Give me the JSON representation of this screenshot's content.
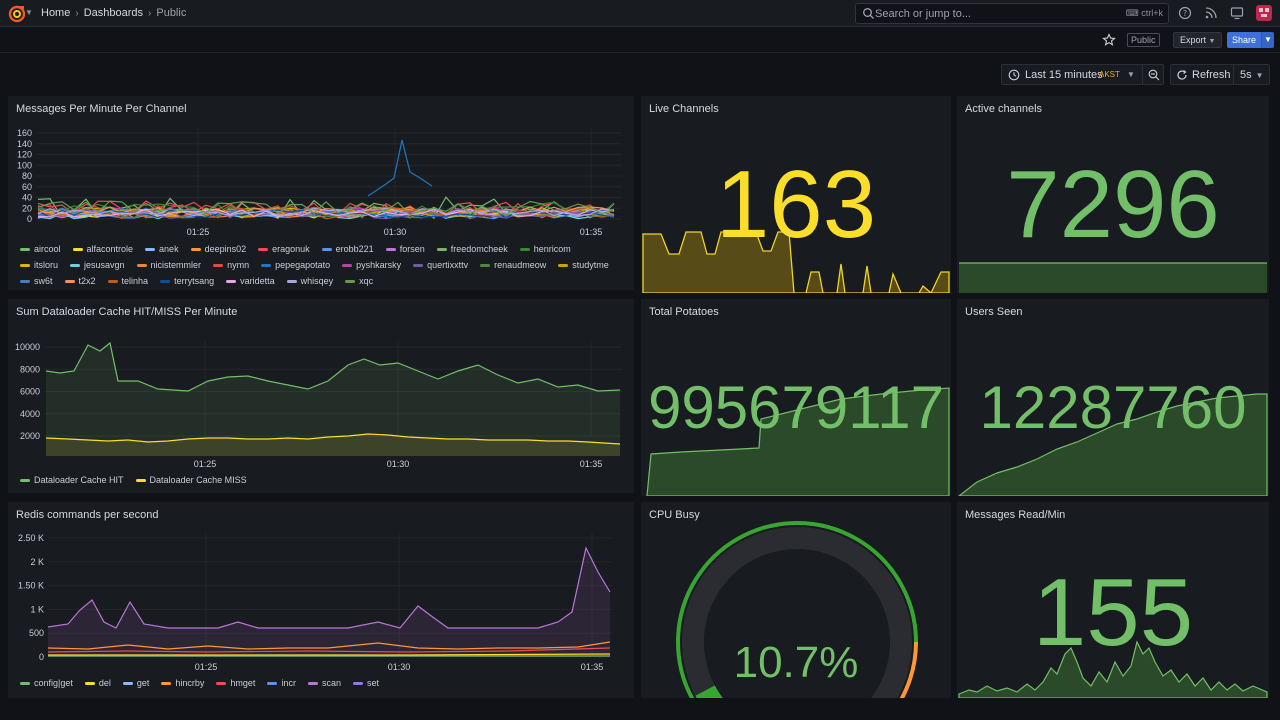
{
  "topbar": {
    "breadcrumbs": [
      "Home",
      "Dashboards",
      "Public"
    ],
    "search_placeholder": "Search or jump to...",
    "search_shortcut": "ctrl+k"
  },
  "toolbar": {
    "public_badge": "Public",
    "export_label": "Export",
    "share_label": "Share"
  },
  "timepicker": {
    "range": "Last 15 minutes",
    "timezone": "AKST",
    "refresh_label": "Refresh",
    "refresh_interval": "5s"
  },
  "colors": {
    "green": "#73bf69",
    "yellow": "#fade2a",
    "orange": "#ff9830",
    "red": "#f2495c",
    "blue": "#5794f2",
    "purple": "#b877d9"
  },
  "panels": {
    "messages_per_minute": {
      "title": "Messages Per Minute Per Channel",
      "y_ticks": [
        "160",
        "140",
        "120",
        "100",
        "80",
        "60",
        "40",
        "20",
        "0"
      ],
      "x_ticks": [
        "01:25",
        "01:30",
        "01:35"
      ],
      "legend": [
        {
          "name": "aircool",
          "color": "#73bf69"
        },
        {
          "name": "alfacontrole",
          "color": "#fade2a"
        },
        {
          "name": "anek",
          "color": "#8ab8ff"
        },
        {
          "name": "deepins02",
          "color": "#ff9830"
        },
        {
          "name": "eragonuk",
          "color": "#f2495c"
        },
        {
          "name": "erobb221",
          "color": "#5794f2"
        },
        {
          "name": "forsen",
          "color": "#b877d9"
        },
        {
          "name": "freedomcheek",
          "color": "#7eb26d"
        },
        {
          "name": "henricom",
          "color": "#37872d"
        },
        {
          "name": "itsloru",
          "color": "#e0b400"
        },
        {
          "name": "jesusavgn",
          "color": "#6ed0e0"
        },
        {
          "name": "nicistemmler",
          "color": "#ef843c"
        },
        {
          "name": "nymn",
          "color": "#e24d42"
        },
        {
          "name": "pepegapotato",
          "color": "#1f78c1"
        },
        {
          "name": "pyshkarsky",
          "color": "#ba43a9"
        },
        {
          "name": "quertixxttv",
          "color": "#705da0"
        },
        {
          "name": "renaudmeow",
          "color": "#508642"
        },
        {
          "name": "studytme",
          "color": "#cca300"
        },
        {
          "name": "sw6t",
          "color": "#447ebc"
        },
        {
          "name": "t2x2",
          "color": "#f9934e"
        },
        {
          "name": "telinha",
          "color": "#c15c17"
        },
        {
          "name": "terrytsang",
          "color": "#0a50a1"
        },
        {
          "name": "varidetta",
          "color": "#e5a8e2"
        },
        {
          "name": "whisqey",
          "color": "#aea2e0"
        },
        {
          "name": "xqc",
          "color": "#629e51"
        }
      ]
    },
    "live_channels": {
      "title": "Live Channels",
      "value": "163"
    },
    "active_channels": {
      "title": "Active channels",
      "value": "7296"
    },
    "dataloader": {
      "title": "Sum Dataloader Cache HIT/MISS Per Minute",
      "y_ticks": [
        "10000",
        "8000",
        "6000",
        "4000",
        "2000"
      ],
      "x_ticks": [
        "01:25",
        "01:30",
        "01:35"
      ],
      "legend": [
        {
          "name": "Dataloader Cache HIT",
          "color": "#73bf69"
        },
        {
          "name": "Dataloader Cache MISS",
          "color": "#fade2a"
        }
      ]
    },
    "total_potatoes": {
      "title": "Total Potatoes",
      "value": "995679117"
    },
    "users_seen": {
      "title": "Users Seen",
      "value": "12287760"
    },
    "redis": {
      "title": "Redis commands per second",
      "y_ticks": [
        "2.50 K",
        "2 K",
        "1.50 K",
        "1 K",
        "500",
        "0"
      ],
      "x_ticks": [
        "01:25",
        "01:30",
        "01:35"
      ],
      "legend": [
        {
          "name": "config|get",
          "color": "#73bf69"
        },
        {
          "name": "del",
          "color": "#fade2a"
        },
        {
          "name": "get",
          "color": "#8ab8ff"
        },
        {
          "name": "hincrby",
          "color": "#ff9830"
        },
        {
          "name": "hmget",
          "color": "#f2495c"
        },
        {
          "name": "incr",
          "color": "#5794f2"
        },
        {
          "name": "scan",
          "color": "#b877d9"
        },
        {
          "name": "set",
          "color": "#8f7ae0"
        }
      ]
    },
    "cpu_busy": {
      "title": "CPU Busy",
      "value": "10.7%",
      "fraction": 0.107
    },
    "messages_read": {
      "title": "Messages Read/Min",
      "value": "155"
    }
  }
}
